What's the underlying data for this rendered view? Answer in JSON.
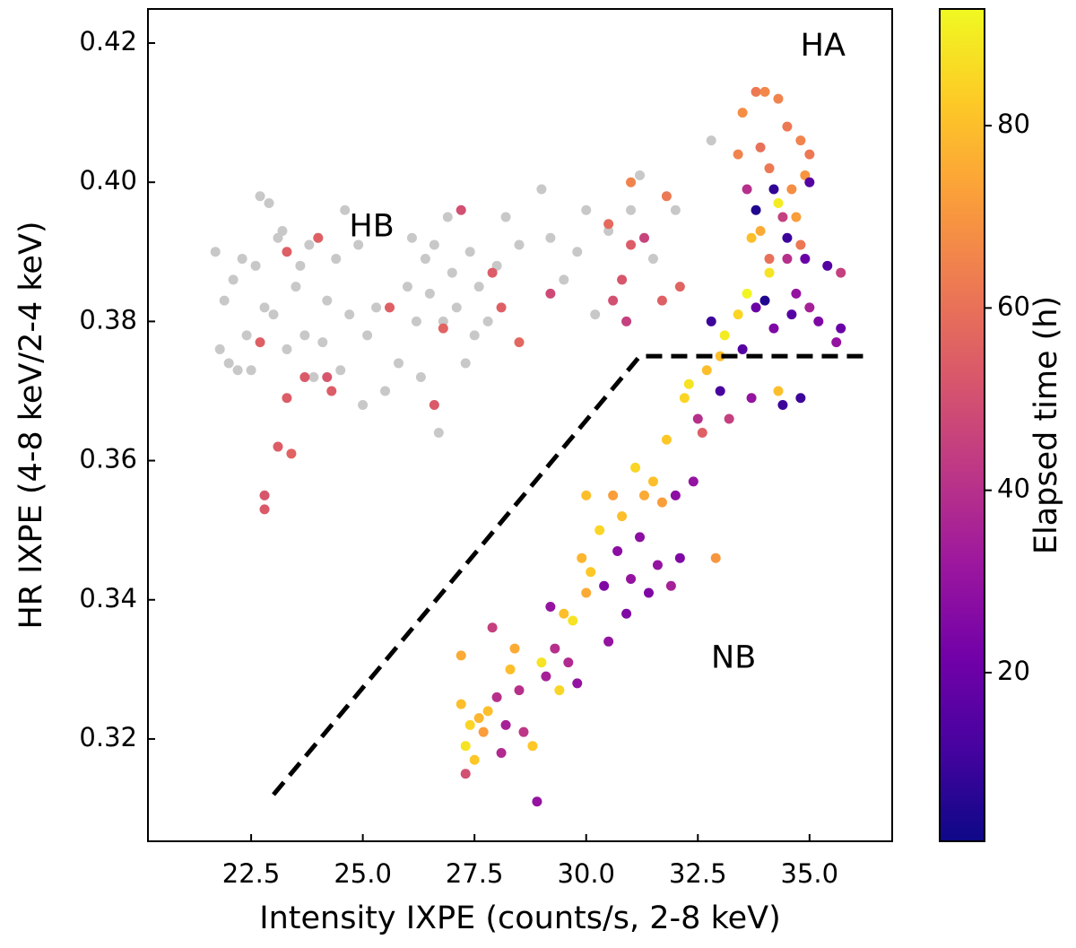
{
  "chart_data": {
    "type": "scatter",
    "xlabel": "Intensity IXPE (counts/s, 2-8 keV)",
    "ylabel": "HR IXPE (4-8 keV/2-4 keV)",
    "colorbar_label": "Elapsed time (h)",
    "xlim": [
      20.19,
      36.85
    ],
    "ylim": [
      0.3053,
      0.4249
    ],
    "xticks": [
      {
        "value": 22.5,
        "label": "22.5"
      },
      {
        "value": 25,
        "label": "25.0"
      },
      {
        "value": 27.5,
        "label": "27.5"
      },
      {
        "value": 30,
        "label": "30.0"
      },
      {
        "value": 32.5,
        "label": "32.5"
      },
      {
        "value": 35,
        "label": "35.0"
      }
    ],
    "yticks": [
      0.32,
      0.34,
      0.36,
      0.38,
      {
        "value": 0.4,
        "label": "0.40"
      },
      0.42
    ],
    "clim": [
      1.5,
      92.8
    ],
    "cticks": [
      20,
      40,
      60,
      80
    ],
    "colormap": [
      "#0d0887",
      "#46039f",
      "#7201a8",
      "#9c179e",
      "#bd3786",
      "#d8576b",
      "#ed7953",
      "#fb9f3a",
      "#fdca26",
      "#f0f921"
    ],
    "boundary": {
      "x": [
        23.0,
        31.2,
        36.2
      ],
      "y": [
        0.312,
        0.375,
        0.375
      ],
      "color": "#000000"
    },
    "annotations": [
      {
        "text": "HB",
        "x": 25.2,
        "y": 0.3935
      },
      {
        "text": "HA",
        "x": 35.3,
        "y": 0.4195
      },
      {
        "text": "NB",
        "x": 33.3,
        "y": 0.3315
      }
    ],
    "series": [
      {
        "color": "#c8c8c8",
        "x": [
          21.7,
          21.8,
          21.9,
          22.0,
          22.1,
          22.2,
          22.3,
          22.4,
          22.5,
          22.6,
          22.7,
          22.8,
          22.9,
          23.0,
          23.1,
          23.2,
          23.3,
          23.5,
          23.6,
          23.7,
          23.8,
          23.9,
          24.0,
          24.1,
          24.2,
          24.4,
          24.5,
          24.6,
          24.7,
          24.9,
          25.0,
          25.1,
          25.3,
          25.5,
          25.8,
          26.0,
          26.1,
          26.2,
          26.3,
          26.4,
          26.5,
          26.6,
          26.7,
          26.8,
          26.9,
          27.0,
          27.1,
          27.3,
          27.4,
          27.5,
          27.6,
          27.8,
          28.0,
          28.2,
          28.5,
          29.0,
          29.2,
          29.5,
          29.8,
          30.0,
          30.2,
          30.5,
          31.0,
          31.2,
          31.5,
          32.0,
          32.8
        ],
        "y": [
          0.39,
          0.376,
          0.383,
          0.374,
          0.386,
          0.373,
          0.389,
          0.378,
          0.373,
          0.388,
          0.398,
          0.382,
          0.397,
          0.381,
          0.392,
          0.393,
          0.376,
          0.385,
          0.388,
          0.378,
          0.391,
          0.372,
          0.392,
          0.377,
          0.383,
          0.389,
          0.373,
          0.396,
          0.381,
          0.391,
          0.368,
          0.378,
          0.382,
          0.37,
          0.374,
          0.385,
          0.392,
          0.38,
          0.372,
          0.389,
          0.384,
          0.391,
          0.364,
          0.38,
          0.395,
          0.387,
          0.382,
          0.374,
          0.39,
          0.378,
          0.385,
          0.38,
          0.388,
          0.395,
          0.391,
          0.399,
          0.392,
          0.386,
          0.39,
          0.396,
          0.381,
          0.393,
          0.396,
          0.401,
          0.389,
          0.396,
          0.406
        ]
      },
      {
        "x": [
          22.7,
          22.8,
          22.8,
          23.1,
          23.3,
          23.4,
          23.3,
          23.7,
          24.0,
          24.2,
          24.3,
          25.6,
          26.6,
          26.8,
          27.2,
          27.9,
          28.1,
          28.5,
          29.2,
          30.5,
          30.6,
          30.8,
          31.0,
          31.3,
          31.7,
          31.0,
          31.8,
          32.1,
          30.9,
          27.2,
          27.2,
          27.3,
          27.3,
          27.4,
          27.5,
          27.6,
          27.7,
          27.8,
          27.9,
          28.0,
          28.1,
          28.2,
          28.3,
          28.4,
          28.5,
          28.6,
          28.8,
          28.9,
          29.0,
          29.1,
          29.2,
          29.3,
          29.4,
          29.5,
          29.6,
          29.7,
          29.8,
          29.9,
          30.0,
          30.0,
          30.1,
          30.3,
          30.4,
          30.5,
          30.6,
          30.7,
          30.8,
          30.9,
          31.0,
          31.1,
          31.2,
          31.3,
          31.4,
          31.5,
          31.6,
          31.7,
          31.8,
          31.9,
          32.0,
          32.1,
          32.2,
          32.3,
          32.4,
          32.5,
          32.6,
          32.7,
          32.8,
          32.9,
          33.0,
          33.1,
          33.2,
          33.4,
          33.5,
          33.6,
          33.7,
          33.8,
          33.9,
          34.0,
          34.1,
          34.2,
          34.3,
          34.4,
          34.5,
          34.6,
          34.7,
          34.8,
          34.9,
          35.0,
          35.2,
          35.4,
          35.6,
          35.7,
          35.7,
          33.0,
          33.4,
          33.5,
          33.8,
          34.0,
          33.9,
          34.1,
          34.3,
          34.5,
          34.6,
          34.7,
          34.8,
          34.9,
          35.0,
          33.6,
          33.8,
          34.2,
          34.3,
          34.5,
          34.1,
          34.8,
          35.0,
          34.4,
          33.7
        ],
        "y": [
          0.377,
          0.355,
          0.353,
          0.362,
          0.39,
          0.361,
          0.369,
          0.372,
          0.392,
          0.372,
          0.37,
          0.382,
          0.368,
          0.379,
          0.396,
          0.387,
          0.382,
          0.377,
          0.384,
          0.394,
          0.383,
          0.386,
          0.391,
          0.392,
          0.383,
          0.4,
          0.398,
          0.385,
          0.38,
          0.332,
          0.325,
          0.319,
          0.315,
          0.322,
          0.317,
          0.323,
          0.321,
          0.324,
          0.336,
          0.326,
          0.318,
          0.322,
          0.33,
          0.333,
          0.327,
          0.321,
          0.319,
          0.311,
          0.331,
          0.329,
          0.339,
          0.333,
          0.327,
          0.338,
          0.331,
          0.337,
          0.328,
          0.346,
          0.355,
          0.341,
          0.344,
          0.35,
          0.342,
          0.334,
          0.355,
          0.347,
          0.352,
          0.338,
          0.343,
          0.359,
          0.349,
          0.355,
          0.341,
          0.357,
          0.345,
          0.354,
          0.363,
          0.342,
          0.355,
          0.346,
          0.369,
          0.371,
          0.357,
          0.366,
          0.364,
          0.373,
          0.38,
          0.346,
          0.37,
          0.378,
          0.366,
          0.381,
          0.376,
          0.384,
          0.369,
          0.382,
          0.393,
          0.383,
          0.387,
          0.379,
          0.37,
          0.368,
          0.389,
          0.381,
          0.384,
          0.369,
          0.389,
          0.382,
          0.38,
          0.388,
          0.377,
          0.387,
          0.379,
          0.375,
          0.404,
          0.41,
          0.413,
          0.413,
          0.405,
          0.402,
          0.412,
          0.408,
          0.399,
          0.395,
          0.406,
          0.401,
          0.404,
          0.399,
          0.396,
          0.399,
          0.397,
          0.392,
          0.389,
          0.391,
          0.4,
          0.395,
          0.392
        ],
        "c": [
          55,
          52,
          53,
          54,
          55,
          56,
          54,
          53,
          55,
          52,
          54,
          55,
          53,
          56,
          50,
          54,
          55,
          57,
          48,
          58,
          50,
          52,
          54,
          46,
          55,
          65,
          62,
          56,
          45,
          75,
          80,
          88,
          50,
          85,
          82,
          78,
          72,
          80,
          45,
          40,
          38,
          35,
          80,
          75,
          40,
          42,
          82,
          30,
          88,
          35,
          30,
          40,
          85,
          80,
          38,
          88,
          30,
          78,
          80,
          75,
          82,
          85,
          25,
          30,
          72,
          28,
          80,
          25,
          30,
          85,
          28,
          75,
          25,
          80,
          30,
          72,
          82,
          35,
          28,
          25,
          85,
          88,
          30,
          40,
          55,
          80,
          10,
          70,
          12,
          90,
          45,
          85,
          15,
          92,
          30,
          20,
          75,
          5,
          88,
          25,
          80,
          10,
          40,
          15,
          30,
          10,
          20,
          35,
          25,
          15,
          30,
          45,
          20,
          80,
          65,
          68,
          62,
          66,
          60,
          62,
          65,
          62,
          68,
          72,
          65,
          70,
          62,
          40,
          5,
          8,
          90,
          10,
          60,
          62,
          15,
          45,
          80
        ]
      }
    ]
  }
}
